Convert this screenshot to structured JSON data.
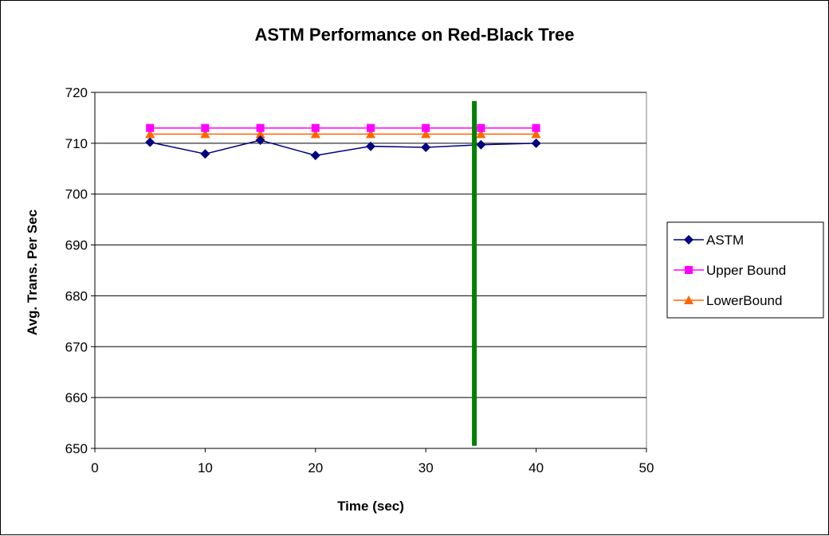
{
  "chart_data": {
    "type": "line",
    "title": "ASTM Performance on Red-Black Tree",
    "xlabel": "Time (sec)",
    "ylabel": "Avg. Trans. Per Sec",
    "xlim": [
      0,
      50
    ],
    "ylim": [
      650,
      720
    ],
    "xticks": [
      0,
      10,
      20,
      30,
      40,
      50
    ],
    "yticks": [
      650,
      660,
      670,
      680,
      690,
      700,
      710,
      720
    ],
    "grid": "horizontal",
    "legend_position": "right",
    "x": [
      5,
      10,
      15,
      20,
      25,
      30,
      35,
      40
    ],
    "series": [
      {
        "name": "ASTM",
        "color": "#000080",
        "marker": "diamond",
        "values": [
          710.2,
          707.9,
          710.6,
          707.6,
          709.4,
          709.2,
          709.7,
          710.0
        ]
      },
      {
        "name": "Upper Bound",
        "color": "#FF00FF",
        "marker": "square",
        "values": [
          713,
          713,
          713,
          713,
          713,
          713,
          713,
          713
        ]
      },
      {
        "name": "LowerBound",
        "color": "#FF6600",
        "marker": "triangle",
        "values": [
          711.8,
          711.8,
          711.8,
          711.8,
          711.8,
          711.8,
          711.8,
          711.8
        ]
      }
    ],
    "annotations": [
      {
        "type": "vertical-line",
        "x": 34.4,
        "y_from": 650.5,
        "y_to": 718.3,
        "color": "#008000"
      }
    ]
  }
}
